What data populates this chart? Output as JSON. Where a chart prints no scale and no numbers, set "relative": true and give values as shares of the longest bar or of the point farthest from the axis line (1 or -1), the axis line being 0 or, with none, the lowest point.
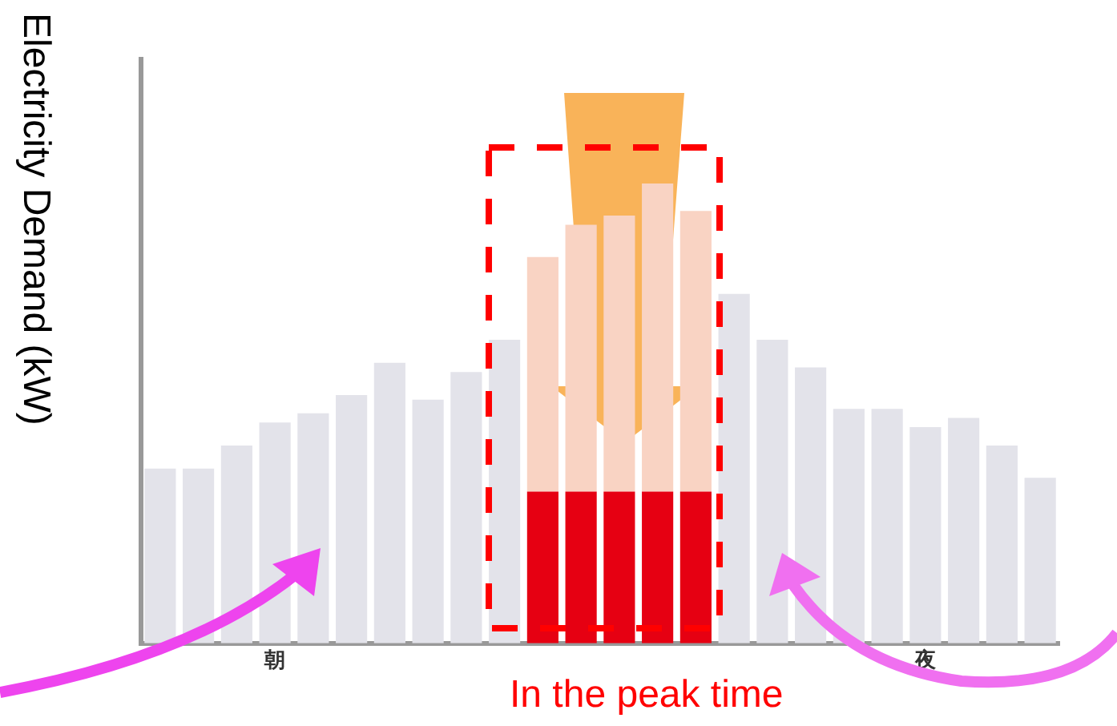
{
  "chart_data": {
    "type": "bar",
    "ylabel": "Electricity Demand (kW)",
    "relative": true,
    "stacked": true,
    "legend": false,
    "grid": false,
    "tick_labels": "x",
    "categories": [
      null,
      null,
      null,
      "朝",
      null,
      null,
      null,
      null,
      null,
      null,
      null,
      null,
      null,
      null,
      null,
      null,
      null,
      null,
      null,
      null,
      "夜",
      null,
      null,
      null
    ],
    "series": [
      {
        "color": "#e3e3ea",
        "values": [
          0.38,
          0.38,
          0.43,
          0.48,
          0.5,
          0.54,
          0.61,
          0.53,
          0.59,
          0.66,
          null,
          null,
          null,
          null,
          null,
          0.76,
          0.66,
          0.6,
          0.51,
          0.51,
          0.47,
          0.49,
          0.43,
          0.36
        ]
      },
      {
        "color": "#e60012",
        "values": [
          null,
          null,
          null,
          null,
          null,
          null,
          null,
          null,
          null,
          null,
          0.33,
          0.33,
          0.33,
          0.33,
          0.33,
          null,
          null,
          null,
          null,
          null,
          null,
          null,
          null,
          null
        ]
      },
      {
        "color": "#f9d3c3",
        "values": [
          null,
          null,
          null,
          null,
          null,
          null,
          null,
          null,
          null,
          null,
          0.51,
          0.58,
          0.6,
          0.67,
          0.61,
          null,
          null,
          null,
          null,
          null,
          null,
          null,
          null,
          null
        ]
      }
    ],
    "annotations": [
      "In the peak time"
    ]
  }
}
